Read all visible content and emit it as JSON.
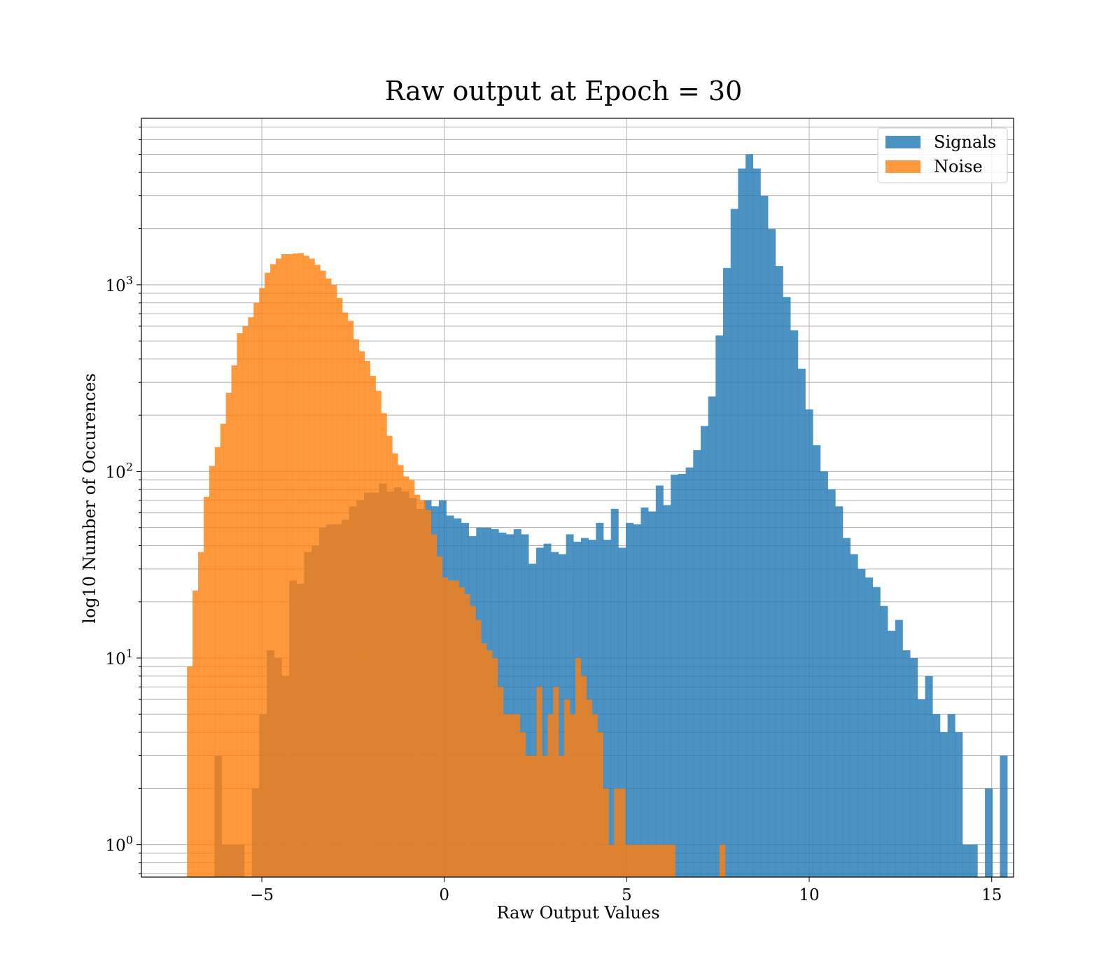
{
  "chart_data": {
    "type": "bar",
    "title": "Raw output at Epoch = 30",
    "xlabel": "Raw Output Values",
    "ylabel": "log10 Number of Occurences",
    "xlim": [
      -8.3,
      15.6
    ],
    "ylim": [
      0.67,
      7800
    ],
    "yscale": "log",
    "grid": true,
    "legend_position": "top-right",
    "xticks": [
      {
        "value": -5,
        "label": "−5"
      },
      {
        "value": 0,
        "label": "0"
      },
      {
        "value": 5,
        "label": "5"
      },
      {
        "value": 10,
        "label": "10"
      },
      {
        "value": 15,
        "label": "15"
      }
    ],
    "yticks": [
      {
        "value": 1,
        "base": "10",
        "exp": "0"
      },
      {
        "value": 10,
        "base": "10",
        "exp": "1"
      },
      {
        "value": 100,
        "base": "10",
        "exp": "2"
      },
      {
        "value": 1000,
        "base": "10",
        "exp": "3"
      }
    ],
    "series": [
      {
        "name": "Signals",
        "color": "#1f77b4",
        "opacity": 0.8,
        "bin_start": -6.3,
        "bin_width": 0.205,
        "values": [
          3,
          1,
          1,
          1,
          0,
          2,
          5,
          11,
          10,
          8,
          26,
          25,
          37,
          40,
          50,
          52,
          52,
          55,
          65,
          70,
          77,
          77,
          86,
          78,
          82,
          78,
          72,
          63,
          70,
          65,
          70,
          58,
          56,
          53,
          45,
          50,
          50,
          49,
          47,
          46,
          49,
          46,
          32,
          39,
          41,
          37,
          36,
          46,
          42,
          44,
          43,
          53,
          43,
          63,
          39,
          53,
          52,
          64,
          61,
          84,
          66,
          96,
          97,
          105,
          130,
          175,
          252,
          535,
          1230,
          2550,
          4200,
          5000,
          4200,
          3000,
          1990,
          1260,
          860,
          570,
          355,
          215,
          138,
          100,
          80,
          65,
          44,
          36,
          30,
          27,
          24,
          19,
          14,
          16,
          11,
          10,
          6,
          8,
          5,
          4,
          5,
          4,
          1,
          1,
          0,
          2,
          0,
          3
        ]
      },
      {
        "name": "Noise",
        "color": "#ff7f0e",
        "opacity": 0.8,
        "bin_start": -7.05,
        "bin_width": 0.152,
        "values": [
          9,
          23,
          37,
          73,
          107,
          135,
          180,
          264,
          370,
          550,
          600,
          670,
          800,
          960,
          1160,
          1290,
          1380,
          1460,
          1460,
          1470,
          1480,
          1430,
          1380,
          1280,
          1190,
          1080,
          1000,
          850,
          710,
          640,
          510,
          440,
          390,
          325,
          270,
          205,
          155,
          125,
          108,
          94,
          90,
          75,
          70,
          62,
          46,
          35,
          27,
          26,
          26,
          24,
          22,
          19,
          16,
          12,
          11,
          10,
          7,
          5,
          5,
          5,
          4,
          3,
          3,
          7,
          3,
          5,
          7,
          3,
          6,
          5,
          10,
          8,
          6,
          5,
          4,
          2,
          1,
          2,
          2,
          1,
          1,
          1,
          1,
          1,
          1,
          1,
          1,
          1,
          0,
          0,
          0,
          0,
          0,
          0,
          0,
          0,
          1
        ]
      }
    ]
  }
}
